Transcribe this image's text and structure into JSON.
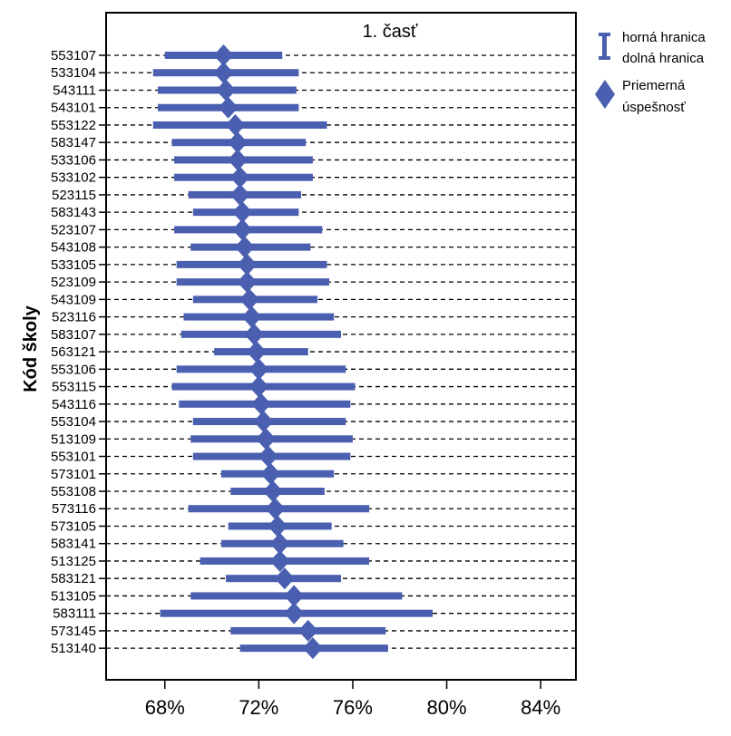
{
  "chart_data": {
    "type": "interval",
    "title": "1. časť",
    "ylabel": "Kód školy",
    "xlabel": "",
    "xlim": [
      65.5,
      85.5
    ],
    "x_ticks": [
      68,
      72,
      76,
      80,
      84
    ],
    "x_tick_labels": [
      "68%",
      "72%",
      "76%",
      "80%",
      "84%"
    ],
    "grid": "dashed horizontal lines per category",
    "legend_position": "right, outside plot",
    "legend": {
      "interval_line1": "horná hranica",
      "interval_line2": "dolná hranica",
      "mean_line1": "Priemerná",
      "mean_line2": "úspešnosť"
    },
    "color": "#4a5fb0",
    "categories": [
      "553107",
      "533104",
      "543111",
      "543101",
      "553122",
      "583147",
      "533106",
      "533102",
      "523115",
      "583143",
      "523107",
      "543108",
      "533105",
      "523109",
      "543109",
      "523116",
      "583107",
      "563121",
      "553106",
      "553115",
      "543116",
      "553104",
      "513109",
      "553101",
      "573101",
      "553108",
      "573116",
      "573105",
      "583141",
      "513125",
      "583121",
      "513105",
      "583111",
      "573145",
      "513140"
    ],
    "mean": [
      70.5,
      70.5,
      70.6,
      70.7,
      71.0,
      71.1,
      71.1,
      71.2,
      71.2,
      71.3,
      71.3,
      71.4,
      71.5,
      71.5,
      71.6,
      71.7,
      71.8,
      71.9,
      72.0,
      72.0,
      72.1,
      72.2,
      72.3,
      72.4,
      72.5,
      72.6,
      72.7,
      72.8,
      72.9,
      72.9,
      73.1,
      73.5,
      73.5,
      74.1,
      74.3
    ],
    "lower": [
      68.0,
      67.5,
      67.7,
      67.7,
      67.5,
      68.3,
      68.4,
      68.4,
      69.0,
      69.2,
      68.4,
      69.1,
      68.5,
      68.5,
      69.2,
      68.8,
      68.7,
      70.1,
      68.5,
      68.3,
      68.6,
      69.2,
      69.1,
      69.2,
      70.4,
      70.8,
      69.0,
      70.7,
      70.4,
      69.5,
      70.6,
      69.1,
      67.8,
      70.8,
      71.2
    ],
    "upper": [
      73.0,
      73.7,
      73.6,
      73.7,
      74.9,
      74.0,
      74.3,
      74.3,
      73.8,
      73.7,
      74.7,
      74.2,
      74.9,
      75.0,
      74.5,
      75.2,
      75.5,
      74.1,
      75.7,
      76.1,
      75.9,
      75.7,
      76.0,
      75.9,
      75.2,
      74.8,
      76.7,
      75.1,
      75.6,
      76.7,
      75.5,
      78.1,
      79.4,
      77.4,
      77.5
    ]
  }
}
